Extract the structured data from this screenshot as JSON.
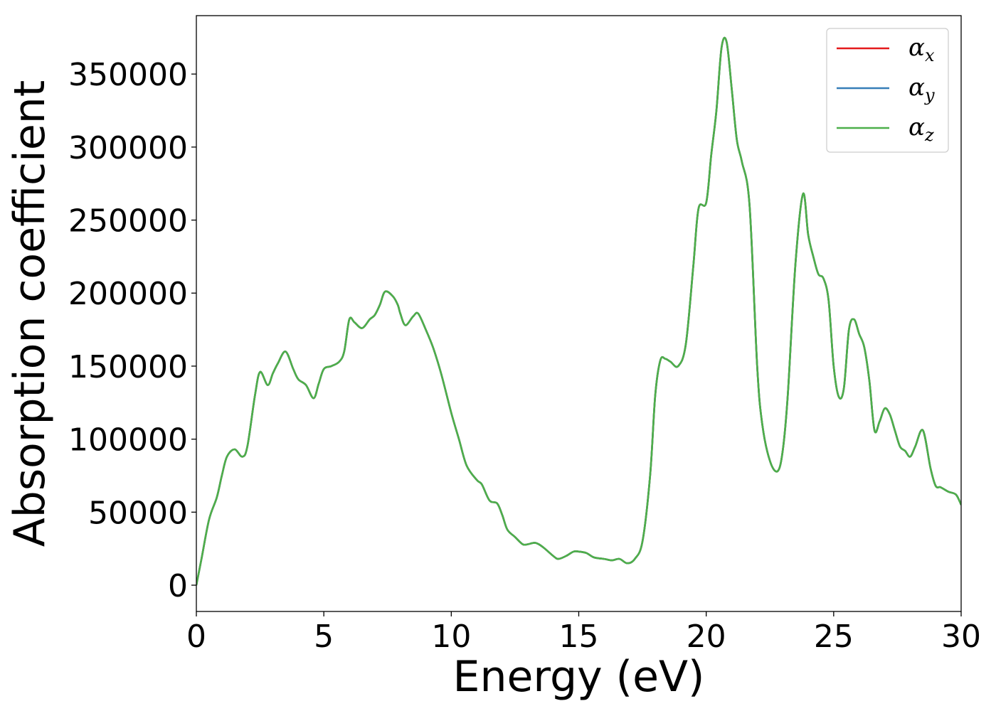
{
  "chart_data": {
    "type": "line",
    "xlabel": "Energy (eV)",
    "ylabel": "Absorption coefficient",
    "xlim": [
      0,
      30
    ],
    "ylim": [
      -18000,
      390000
    ],
    "x_ticks": [
      0,
      5,
      10,
      15,
      20,
      25,
      30
    ],
    "x_tick_labels": [
      "0",
      "5",
      "10",
      "15",
      "20",
      "25",
      "30"
    ],
    "y_ticks": [
      0,
      50000,
      100000,
      150000,
      200000,
      250000,
      300000,
      350000
    ],
    "y_tick_labels": [
      "0",
      "50000",
      "100000",
      "150000",
      "200000",
      "250000",
      "300000",
      "350000"
    ],
    "grid": false,
    "legend_position": "top-right",
    "series": [
      {
        "name": "α_x",
        "symbol": "α",
        "subscript": "x",
        "color": "#e41a1c",
        "curve": "shared"
      },
      {
        "name": "α_y",
        "symbol": "α",
        "subscript": "y",
        "color": "#377eb8",
        "curve": "shared"
      },
      {
        "name": "α_z",
        "symbol": "α",
        "subscript": "z",
        "color": "#4daf4a",
        "curve": "shared"
      }
    ],
    "x": [
      0,
      0.2,
      0.5,
      0.8,
      1.0,
      1.2,
      1.5,
      1.8,
      2.0,
      2.3,
      2.5,
      2.8,
      3.0,
      3.2,
      3.5,
      3.8,
      4.0,
      4.3,
      4.6,
      4.8,
      5.0,
      5.3,
      5.6,
      5.8,
      6.0,
      6.2,
      6.5,
      6.8,
      7.0,
      7.2,
      7.4,
      7.7,
      7.9,
      8.0,
      8.2,
      8.5,
      8.7,
      9.0,
      9.3,
      9.6,
      10.0,
      10.3,
      10.6,
      11.0,
      11.2,
      11.5,
      11.8,
      12.0,
      12.2,
      12.5,
      12.8,
      13.0,
      13.3,
      13.6,
      14.0,
      14.2,
      14.5,
      14.8,
      15.0,
      15.3,
      15.6,
      16.0,
      16.3,
      16.6,
      16.9,
      17.2,
      17.5,
      17.8,
      18.0,
      18.2,
      18.4,
      18.6,
      18.9,
      19.2,
      19.5,
      19.7,
      20.0,
      20.2,
      20.4,
      20.6,
      20.8,
      21.0,
      21.2,
      21.4,
      21.7,
      22.0,
      22.2,
      22.5,
      22.8,
      23.0,
      23.2,
      23.5,
      23.8,
      24.0,
      24.2,
      24.4,
      24.6,
      24.8,
      25.0,
      25.2,
      25.4,
      25.6,
      25.8,
      26.0,
      26.2,
      26.4,
      26.6,
      26.8,
      27.0,
      27.2,
      27.4,
      27.6,
      27.8,
      28.0,
      28.2,
      28.5,
      28.8,
      29.0,
      29.2,
      29.5,
      29.8,
      30.0
    ],
    "y": [
      0,
      18000,
      45000,
      60000,
      75000,
      88000,
      93000,
      88000,
      95000,
      130000,
      146000,
      137000,
      145000,
      152000,
      160000,
      148000,
      141000,
      137000,
      128000,
      138000,
      148000,
      150000,
      153000,
      160000,
      182000,
      180000,
      176000,
      182000,
      185000,
      192000,
      201000,
      198000,
      192000,
      186000,
      178000,
      184000,
      186000,
      175000,
      162000,
      145000,
      118000,
      100000,
      82000,
      72000,
      69000,
      58000,
      56000,
      48000,
      38000,
      33000,
      28000,
      28000,
      29000,
      26000,
      20000,
      18000,
      20000,
      23000,
      23000,
      22000,
      19000,
      18000,
      17000,
      18000,
      15000,
      18000,
      30000,
      75000,
      130000,
      154000,
      155000,
      153000,
      150000,
      165000,
      220000,
      258000,
      262000,
      295000,
      325000,
      368000,
      372000,
      340000,
      305000,
      290000,
      260000,
      150000,
      110000,
      85000,
      78000,
      92000,
      130000,
      220000,
      268000,
      240000,
      225000,
      213000,
      210000,
      195000,
      150000,
      129000,
      135000,
      175000,
      182000,
      172000,
      163000,
      140000,
      106000,
      112000,
      121000,
      117000,
      106000,
      95000,
      92000,
      88000,
      95000,
      106000,
      80000,
      68000,
      67000,
      64000,
      62000,
      55000
    ]
  }
}
